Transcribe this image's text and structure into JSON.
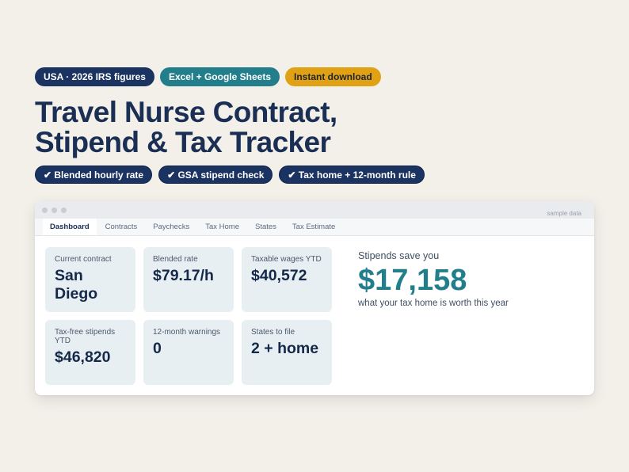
{
  "top_badges": [
    {
      "label": "USA · 2026 IRS figures",
      "color": "#1b3360"
    },
    {
      "label": "Excel + Google Sheets",
      "color": "#237e8c"
    },
    {
      "label": "Instant download",
      "color": "#e0a214"
    }
  ],
  "headline": {
    "line1": "Travel Nurse Contract,",
    "line2": "Stipend & Tax Tracker"
  },
  "features": [
    "✔ Blended hourly rate",
    "✔ GSA stipend check",
    "✔ Tax home + 12-month rule"
  ],
  "window": {
    "sample_label": "sample data",
    "tabs": [
      "Dashboard",
      "Contracts",
      "Paychecks",
      "Tax Home",
      "States",
      "Tax Estimate"
    ],
    "active_tab": "Dashboard"
  },
  "cards": [
    {
      "label": "Current contract",
      "value": "San Diego"
    },
    {
      "label": "Blended rate",
      "value": "$79.17/h"
    },
    {
      "label": "Taxable wages YTD",
      "value": "$40,572"
    },
    {
      "label": "Tax-free stipends YTD",
      "value": "$46,820"
    },
    {
      "label": "12-month warnings",
      "value": "0"
    },
    {
      "label": "States to file",
      "value": "2 + home"
    }
  ],
  "savings": {
    "label": "Stipends save you",
    "value": "$17,158",
    "subtitle": "what your tax home is worth this year",
    "accent_color": "#237e8c"
  }
}
